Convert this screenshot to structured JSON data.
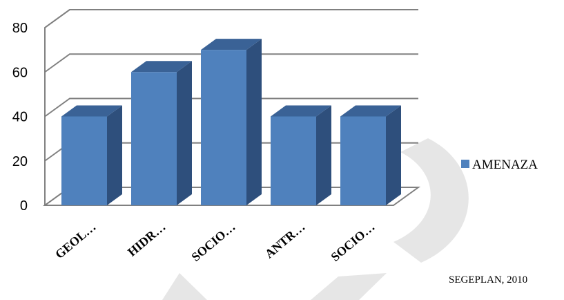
{
  "chart_data": {
    "type": "bar",
    "title": "",
    "xlabel": "",
    "ylabel": "",
    "categories": [
      "GEOL…",
      "HIDR…",
      "SOCIO…",
      "ANTR…",
      "SOCIO…"
    ],
    "series": [
      {
        "name": "AMENAZA",
        "values": [
          40,
          60,
          70,
          40,
          40
        ],
        "color": "#4F81BD"
      }
    ],
    "yticks": [
      0,
      20,
      40,
      60,
      80
    ],
    "ylim": [
      0,
      80
    ],
    "grid": true,
    "legend_position": "right",
    "three_d": true
  },
  "source_note": "SEGEPLAN, 2010",
  "colors": {
    "bar_front": "#4F81BD",
    "bar_side": "#2E4F7C",
    "bar_top": "#3A6296",
    "gridline": "#808080",
    "watermark": "#e6e6e6"
  }
}
